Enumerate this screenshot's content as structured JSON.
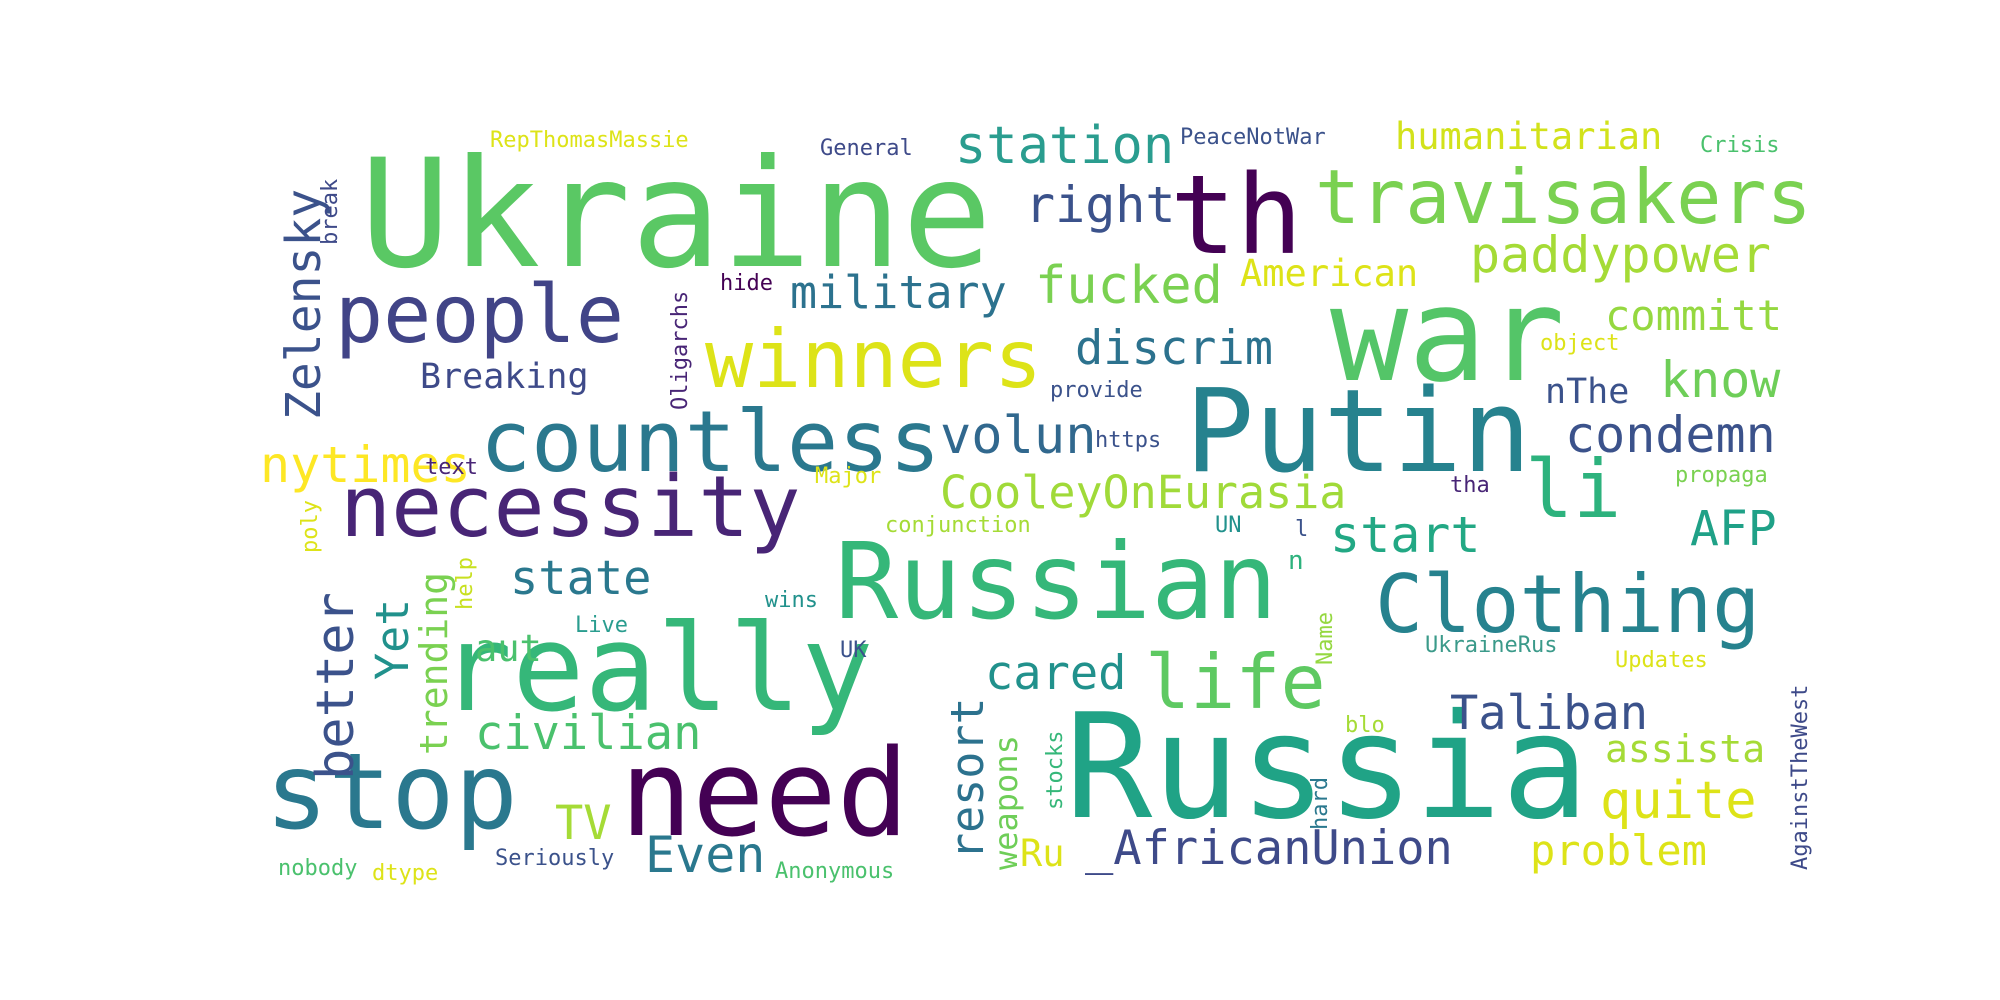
{
  "words": [
    {
      "text": "Ukraine",
      "color": "#5ac864"
    },
    {
      "text": "war",
      "color": "#54c568"
    },
    {
      "text": "Russia",
      "color": "#20a386"
    },
    {
      "text": "th",
      "color": "#440154"
    },
    {
      "text": "Putin",
      "color": "#26828e"
    },
    {
      "text": "really",
      "color": "#35b779"
    },
    {
      "text": "need",
      "color": "#440154"
    },
    {
      "text": "Russian",
      "color": "#35b779"
    },
    {
      "text": "stop",
      "color": "#2a788e"
    },
    {
      "text": "travisakers",
      "color": "#7ad151"
    },
    {
      "text": "people",
      "color": "#414487"
    },
    {
      "text": "winners",
      "color": "#dde318"
    },
    {
      "text": "countless",
      "color": "#2a788e"
    },
    {
      "text": "necessity",
      "color": "#482576"
    },
    {
      "text": "Clothing",
      "color": "#26828e"
    },
    {
      "text": "life",
      "color": "#5ec962"
    },
    {
      "text": "li",
      "color": "#2db27d"
    },
    {
      "text": "station",
      "color": "#2a9d8f"
    },
    {
      "text": "right",
      "color": "#3b528b"
    },
    {
      "text": "fucked",
      "color": "#7ad151"
    },
    {
      "text": "military",
      "color": "#2c728e"
    },
    {
      "text": "discrim",
      "color": "#2c728e"
    },
    {
      "text": "paddypower",
      "color": "#a5db36"
    },
    {
      "text": "humanitarian",
      "color": "#d2e21b"
    },
    {
      "text": "committ",
      "color": "#95d840"
    },
    {
      "text": "know",
      "color": "#6ece58"
    },
    {
      "text": "condemn",
      "color": "#3b528b"
    },
    {
      "text": "nThe",
      "color": "#3b528b"
    },
    {
      "text": "American",
      "color": "#dde318"
    },
    {
      "text": "volun",
      "color": "#31688e"
    },
    {
      "text": "CooleyOnEurasia",
      "color": "#a0da39"
    },
    {
      "text": "start",
      "color": "#22a884"
    },
    {
      "text": "AFP",
      "color": "#1fa187"
    },
    {
      "text": "state",
      "color": "#2a788e"
    },
    {
      "text": "Breaking",
      "color": "#3e4a89"
    },
    {
      "text": "nytimes",
      "color": "#fde725"
    },
    {
      "text": "Zelensky",
      "color": "#3b528b"
    },
    {
      "text": "break",
      "color": "#3e4a89"
    },
    {
      "text": "better",
      "color": "#3b528b"
    },
    {
      "text": "Yet",
      "color": "#21918c"
    },
    {
      "text": "trending",
      "color": "#7ad151"
    },
    {
      "text": "aut",
      "color": "#4ac16d"
    },
    {
      "text": "civilian",
      "color": "#4ac16d"
    },
    {
      "text": "cared",
      "color": "#21918c"
    },
    {
      "text": "Taliban",
      "color": "#3b528b"
    },
    {
      "text": "assista",
      "color": "#a5db36"
    },
    {
      "text": "quite",
      "color": "#dde318"
    },
    {
      "text": "problem",
      "color": "#dde318"
    },
    {
      "text": "_AfricanUnion",
      "color": "#3e4a89"
    },
    {
      "text": "Ru",
      "color": "#dde318"
    },
    {
      "text": "Even",
      "color": "#2a788e"
    },
    {
      "text": "TV",
      "color": "#a5db36"
    },
    {
      "text": "resort",
      "color": "#2c728e"
    },
    {
      "text": "weapons",
      "color": "#6ece58"
    },
    {
      "text": "stocks",
      "color": "#35b779"
    },
    {
      "text": "hard",
      "color": "#2a788e"
    },
    {
      "text": "AgainstTheWest",
      "color": "#3e4a89"
    },
    {
      "text": "UkraineRus",
      "color": "#3b9a8a"
    },
    {
      "text": "Updates",
      "color": "#dde318"
    },
    {
      "text": "RepThomasMassie",
      "color": "#dde318"
    },
    {
      "text": "General",
      "color": "#3e4a89"
    },
    {
      "text": "PeaceNotWar",
      "color": "#3b528b"
    },
    {
      "text": "Crisis",
      "color": "#4ac16d"
    },
    {
      "text": "hide",
      "color": "#440154"
    },
    {
      "text": "Oligarchs",
      "color": "#482576"
    },
    {
      "text": "object",
      "color": "#dde318"
    },
    {
      "text": "provide",
      "color": "#3b528b"
    },
    {
      "text": "https",
      "color": "#3b528b"
    },
    {
      "text": "text",
      "color": "#482576"
    },
    {
      "text": "Major",
      "color": "#dde318"
    },
    {
      "text": "tha",
      "color": "#482576"
    },
    {
      "text": "propaga",
      "color": "#7ad151"
    },
    {
      "text": "conjunction",
      "color": "#a5db36"
    },
    {
      "text": "UN",
      "color": "#21918c"
    },
    {
      "text": "l",
      "color": "#3b528b"
    },
    {
      "text": "n",
      "color": "#2db27d"
    },
    {
      "text": "poly",
      "color": "#dde318"
    },
    {
      "text": "help",
      "color": "#c8e020"
    },
    {
      "text": "wins",
      "color": "#21918c"
    },
    {
      "text": "Live",
      "color": "#2a9d8f"
    },
    {
      "text": "UK",
      "color": "#3b528b"
    },
    {
      "text": "Name",
      "color": "#95d840"
    },
    {
      "text": "blo",
      "color": "#a5db36"
    },
    {
      "text": "nobody",
      "color": "#4ac16d"
    },
    {
      "text": "dtype",
      "color": "#dde318"
    },
    {
      "text": "Seriously",
      "color": "#3b528b"
    },
    {
      "text": "Anonymous",
      "color": "#4ac16d"
    }
  ]
}
